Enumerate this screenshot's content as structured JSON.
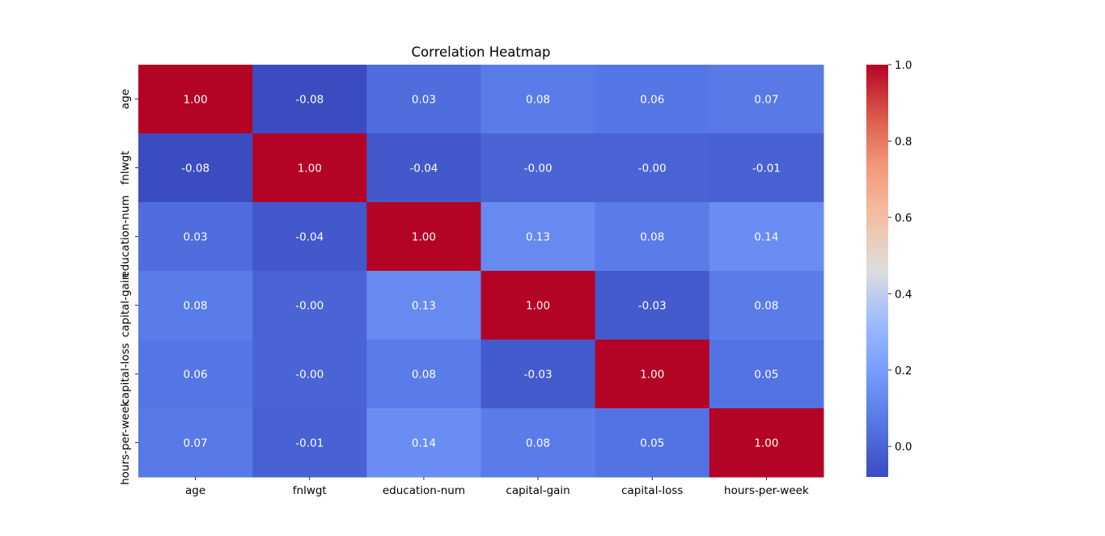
{
  "chart_data": {
    "type": "heatmap",
    "title": "Correlation Heatmap",
    "xlabel": "",
    "ylabel": "",
    "x_categories": [
      "age",
      "fnlwgt",
      "education-num",
      "capital-gain",
      "capital-loss",
      "hours-per-week"
    ],
    "y_categories": [
      "age",
      "fnlwgt",
      "education-num",
      "capital-gain",
      "capital-loss",
      "hours-per-week"
    ],
    "values": [
      [
        1.0,
        -0.08,
        0.03,
        0.08,
        0.06,
        0.07
      ],
      [
        -0.08,
        1.0,
        -0.04,
        -0.0,
        -0.0,
        -0.01
      ],
      [
        0.03,
        -0.04,
        1.0,
        0.13,
        0.08,
        0.14
      ],
      [
        0.08,
        -0.0,
        0.13,
        1.0,
        -0.03,
        0.08
      ],
      [
        0.06,
        -0.0,
        0.08,
        -0.03,
        1.0,
        0.05
      ],
      [
        0.07,
        -0.01,
        0.14,
        0.08,
        0.05,
        1.0
      ]
    ],
    "annotations": [
      [
        "1.00",
        "-0.08",
        "0.03",
        "0.08",
        "0.06",
        "0.07"
      ],
      [
        "-0.08",
        "1.00",
        "-0.04",
        "-0.00",
        "-0.00",
        "-0.01"
      ],
      [
        "0.03",
        "-0.04",
        "1.00",
        "0.13",
        "0.08",
        "0.14"
      ],
      [
        "0.08",
        "-0.00",
        "0.13",
        "1.00",
        "-0.03",
        "0.08"
      ],
      [
        "0.06",
        "-0.00",
        "0.08",
        "-0.03",
        "1.00",
        "0.05"
      ],
      [
        "0.07",
        "-0.01",
        "0.14",
        "0.08",
        "0.05",
        "1.00"
      ]
    ],
    "colormap": "coolwarm",
    "vmin": -0.08,
    "vmax": 1.0,
    "colorbar_ticks": [
      0.0,
      0.2,
      0.4,
      0.6,
      0.8,
      1.0
    ],
    "colorbar_tick_labels": [
      "0.0",
      "0.2",
      "0.4",
      "0.6",
      "0.8",
      "1.0"
    ],
    "grid": false,
    "legend": "colorbar-right"
  }
}
